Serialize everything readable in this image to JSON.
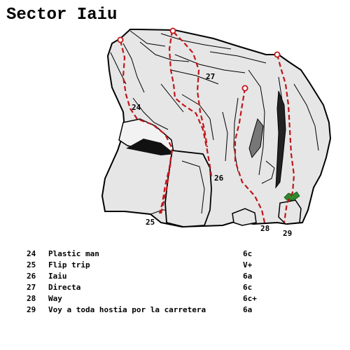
{
  "title": "Sector Iaiu",
  "colors": {
    "rock_fill": "#e6e6e6",
    "rock_outline": "#000000",
    "route_line": "#c0161a",
    "route_anchor": "#c0161a",
    "vegetation": "#2d8a2d"
  },
  "topo_labels": [
    {
      "id": "24",
      "text": "24"
    },
    {
      "id": "25",
      "text": "25"
    },
    {
      "id": "26",
      "text": "26"
    },
    {
      "id": "27",
      "text": "27"
    },
    {
      "id": "28",
      "text": "28"
    },
    {
      "id": "29",
      "text": "29"
    }
  ],
  "routes": [
    {
      "number": "24",
      "name": "Plastic man",
      "grade": "6c"
    },
    {
      "number": "25",
      "name": "Flip trip",
      "grade": "V+"
    },
    {
      "number": "26",
      "name": "Iaiu",
      "grade": "6a"
    },
    {
      "number": "27",
      "name": "Directa",
      "grade": "6c"
    },
    {
      "number": "28",
      "name": "Way",
      "grade": "6c+"
    },
    {
      "number": "29",
      "name": "Voy a toda hostia por la carretera",
      "grade": "6a"
    }
  ]
}
